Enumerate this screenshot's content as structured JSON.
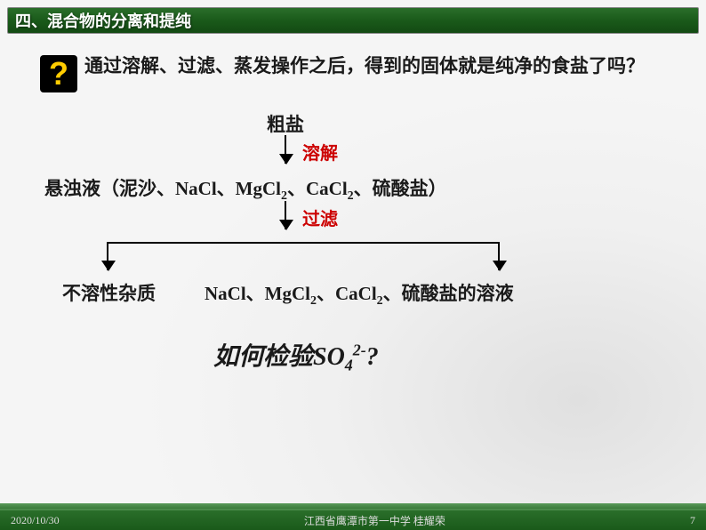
{
  "header": {
    "title": "四、混合物的分离和提纯"
  },
  "question": {
    "text": "通过溶解、过滤、蒸发操作之后，得到的固体就是纯净的食盐了吗？",
    "icon_glyph": "?",
    "icon_bg": "#000000",
    "icon_fg": "#ffcc00"
  },
  "flow": {
    "start": "粗盐",
    "step1_label": "溶解",
    "step1_color": "#cc0000",
    "mid_html": "悬浊液（泥沙、NaCl、MgCl<sub>2</sub>、CaCl<sub>2</sub>、硫酸盐）",
    "step2_label": "过滤",
    "step2_color": "#cc0000",
    "branch_left": "不溶性杂质",
    "branch_right_html": "NaCl、MgCl<sub>2</sub>、CaCl<sub>2</sub>、硫酸盐的溶液"
  },
  "finalQuestion": {
    "html": "如何检验SO<sub>4</sub><sup>2-</sup>?"
  },
  "footer": {
    "date": "2020/10/30",
    "center": "江西省鹰潭市第一中学 桂耀荣",
    "page": "7"
  },
  "style": {
    "header_bg": "linear-gradient(180deg, #2a6e2a 0%, #1a5a1a 50%, #134a13 100%)",
    "body_font_size": 21,
    "title_font_size": 18,
    "final_font_size": 28
  }
}
